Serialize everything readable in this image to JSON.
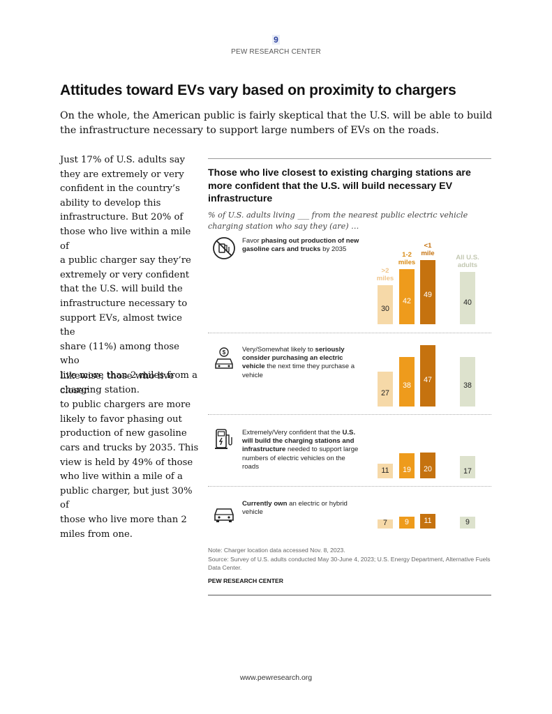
{
  "header": {
    "page_number": "9",
    "org": "PEW RESEARCH CENTER"
  },
  "title": "Attitudes toward EVs vary based on proximity to chargers",
  "intro": "On the whole, the American public is fairly skeptical that the U.S. will be able to build the infrastructure necessary to support large numbers of EVs on the roads.",
  "side_lines_1": [
    "Just 17% of U.S. adults say",
    "they are extremely or very",
    "confident in the country’s",
    "ability to develop this",
    "infrastructure. But 20% of",
    "those who live within a mile of",
    "a public charger say they’re",
    "extremely or very confident",
    "that the U.S. will build the",
    "infrastructure necessary to",
    "support EVs, almost twice the",
    "share (11%) among those who",
    "live more than 2 miles from a",
    "charging station."
  ],
  "side_lines_2": [
    "Likewise, those who live closer",
    "to public chargers are more",
    "likely to favor phasing out",
    "production of new gasoline",
    "cars and trucks by 2035. This",
    "view is held by 49% of those",
    "who live within a mile of a",
    "public charger, but just 30% of",
    "those who live more than 2",
    "miles from one."
  ],
  "chart_data": {
    "type": "bar",
    "title": "Those who live closest to existing charging stations are more confident that the U.S. will build necessary EV infrastructure",
    "subtitle": "% of U.S. adults living ___ from the nearest public electric vehicle charging station who say they (are) …",
    "series": [
      {
        "name": ">2 miles",
        "label_lines": [
          ">2",
          "miles"
        ],
        "color": "#f6d9a8"
      },
      {
        "name": "1-2 miles",
        "label_lines": [
          "1-2",
          "miles"
        ],
        "color": "#ee9b1c"
      },
      {
        "name": "<1 mile",
        "label_lines": [
          "<1",
          "mile"
        ],
        "color": "#c5720f"
      },
      {
        "name": "All U.S. adults",
        "label_lines": [
          "All U.S.",
          "adults"
        ],
        "color": "#dde2cd"
      }
    ],
    "ylim": [
      0,
      50
    ],
    "rows": [
      {
        "icon": "no-gas-car-icon",
        "label": [
          {
            "t": "Favor ",
            "b": false
          },
          {
            "t": "phasing out production of new gasoline cars and trucks",
            "b": true
          },
          {
            "t": " by 2035",
            "b": false
          }
        ],
        "values": [
          30,
          42,
          49,
          40
        ]
      },
      {
        "icon": "dollar-car-icon",
        "label": [
          {
            "t": "Very/Somewhat likely to ",
            "b": false
          },
          {
            "t": "seriously consider purchasing an electric vehicle",
            "b": true
          },
          {
            "t": " the next time they purchase a vehicle",
            "b": false
          }
        ],
        "values": [
          27,
          38,
          47,
          38
        ]
      },
      {
        "icon": "charging-station-icon",
        "label": [
          {
            "t": "Extremely/Very confident that the ",
            "b": false
          },
          {
            "t": "U.S. will build the charging stations and infrastructure",
            "b": true
          },
          {
            "t": " needed to support large numbers of electric vehicles on the roads",
            "b": false
          }
        ],
        "values": [
          11,
          19,
          20,
          17
        ]
      },
      {
        "icon": "car-icon",
        "label": [
          {
            "t": "Currently own",
            "b": true
          },
          {
            "t": " an electric or hybrid vehicle",
            "b": false
          }
        ],
        "values": [
          7,
          9,
          11,
          9
        ]
      }
    ],
    "note": "Note: Charger location data accessed Nov. 8, 2023.",
    "source": "Source: Survey of U.S. adults conducted May 30-June 4, 2023; U.S. Energy Department, Alternative Fuels Data Center.",
    "credit": "PEW RESEARCH CENTER"
  },
  "footer": {
    "url": "www.pewresearch.org"
  }
}
